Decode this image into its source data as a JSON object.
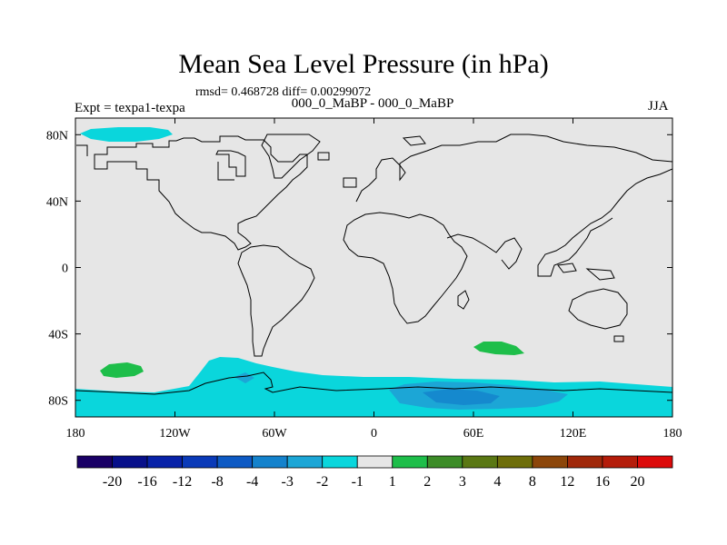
{
  "title": "Mean Sea Level Pressure (in hPa)",
  "stats": "rmsd= 0.468728 diff= 0.00299072",
  "subtitle": "000_0_MaBP - 000_0_MaBP",
  "experiment": "Expt = texpa1-texpa",
  "season": "JJA",
  "map": {
    "lon_range": [
      -180,
      180
    ],
    "lat_range": [
      -90,
      90
    ],
    "projection": "cylindrical equidistant",
    "x_ticks": [
      "180",
      "120W",
      "60W",
      "0",
      "60E",
      "120E",
      "180"
    ],
    "y_ticks": [
      "80N",
      "40N",
      "0",
      "40S",
      "80S"
    ],
    "background_color": "#e6e6e6"
  },
  "colorbar": {
    "labels": [
      "-20",
      "-16",
      "-12",
      "-8",
      "-4",
      "-3",
      "-2",
      "-1",
      "1",
      "2",
      "3",
      "4",
      "8",
      "12",
      "16",
      "20"
    ],
    "colors": [
      "#1a0066",
      "#08108a",
      "#0822a8",
      "#0a3ab8",
      "#0e5ac4",
      "#1482cc",
      "#1ca6d6",
      "#0ad6dc",
      "#e6e6e6",
      "#1ebe4a",
      "#3c8c28",
      "#5a7814",
      "#6e6e0a",
      "#8c460a",
      "#a0280a",
      "#b41c0a",
      "#dc0a0a"
    ]
  }
}
